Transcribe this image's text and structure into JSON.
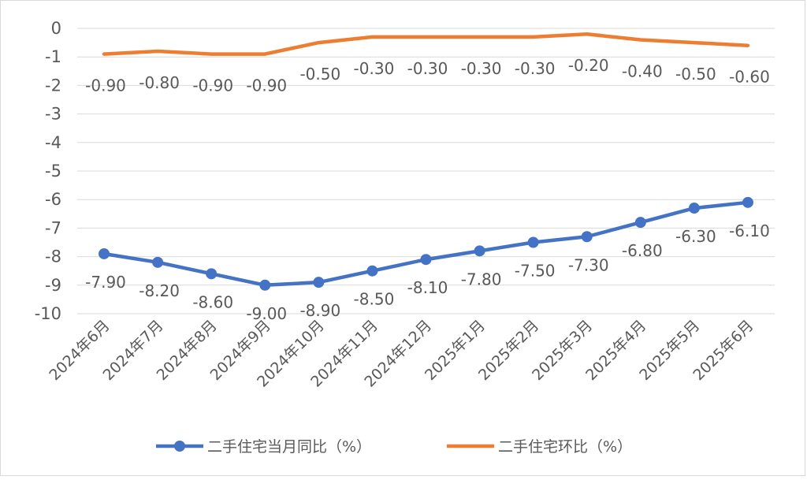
{
  "chart_data": {
    "type": "line",
    "categories": [
      "2024年6月",
      "2024年7月",
      "2024年8月",
      "2024年9月",
      "2024年10月",
      "2024年11月",
      "2024年12月",
      "2025年1月",
      "2025年2月",
      "2025年3月",
      "2025年4月",
      "2025年5月",
      "2025年6月"
    ],
    "series": [
      {
        "name": "二手住宅当月同比（%）",
        "values": [
          -7.9,
          -8.2,
          -8.6,
          -9.0,
          -8.9,
          -8.5,
          -8.1,
          -7.8,
          -7.5,
          -7.3,
          -6.8,
          -6.3,
          -6.1
        ],
        "labels": [
          "-7.90",
          "-8.20",
          "-8.60",
          "-9.00",
          "-8.90",
          "-8.50",
          "-8.10",
          "-7.80",
          "-7.50",
          "-7.30",
          "-6.80",
          "-6.30",
          "-6.10"
        ],
        "color": "#4472C4",
        "marker": "circle"
      },
      {
        "name": "二手住宅环比（%）",
        "values": [
          -0.9,
          -0.8,
          -0.9,
          -0.9,
          -0.5,
          -0.3,
          -0.3,
          -0.3,
          -0.3,
          -0.2,
          -0.4,
          -0.5,
          -0.6
        ],
        "labels": [
          "-0.90",
          "-0.80",
          "-0.90",
          "-0.90",
          "-0.50",
          "-0.30",
          "-0.30",
          "-0.30",
          "-0.30",
          "-0.20",
          "-0.40",
          "-0.50",
          "-0.60"
        ],
        "color": "#ED7D31",
        "marker": "none"
      }
    ],
    "y_ticks": [
      "0",
      "-1",
      "-2",
      "-3",
      "-4",
      "-5",
      "-6",
      "-7",
      "-8",
      "-9",
      "-10"
    ],
    "ylim": [
      -10,
      0
    ],
    "grid": true,
    "legend_position": "bottom"
  }
}
